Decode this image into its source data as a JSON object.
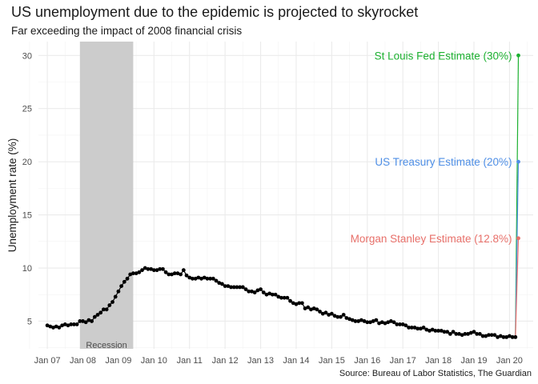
{
  "chart_data": {
    "type": "line",
    "title": "US unemployment due to the epidemic is projected to skyrocket",
    "subtitle": "Far exceeding the impact of 2008 financial crisis",
    "caption": "Source: Bureau of Labor Statistics, The Guardian",
    "ylabel": "Unemployment rate (%)",
    "xlabel": "",
    "xlim": [
      "2006-10",
      "2020-09"
    ],
    "ylim": [
      2.4,
      31.3
    ],
    "grid": true,
    "x_ticks": [
      "Jan 07",
      "Jan 08",
      "Jan 09",
      "Jan 10",
      "Jan 11",
      "Jan 12",
      "Jan 13",
      "Jan 14",
      "Jan 15",
      "Jan 16",
      "Jan 17",
      "Jan 18",
      "Jan 19",
      "Jan 20"
    ],
    "y_ticks": [
      5,
      10,
      15,
      20,
      25,
      30
    ],
    "recession": {
      "label": "Recession",
      "start": "2007-12",
      "end": "2009-06"
    },
    "series": [
      {
        "start": "2007-01",
        "color": "#000000",
        "values": [
          4.6,
          4.5,
          4.4,
          4.5,
          4.4,
          4.6,
          4.7,
          4.6,
          4.7,
          4.7,
          4.7,
          5.0,
          5.0,
          4.9,
          5.1,
          5.0,
          5.4,
          5.6,
          5.8,
          6.1,
          6.1,
          6.5,
          6.8,
          7.3,
          7.8,
          8.3,
          8.7,
          9.0,
          9.4,
          9.5,
          9.5,
          9.6,
          9.8,
          10.0,
          9.9,
          9.9,
          9.8,
          9.8,
          9.9,
          9.9,
          9.6,
          9.4,
          9.4,
          9.5,
          9.5,
          9.4,
          9.8,
          9.3,
          9.1,
          9.0,
          9.0,
          9.1,
          9.0,
          9.1,
          9.0,
          9.0,
          9.0,
          8.8,
          8.6,
          8.5,
          8.3,
          8.3,
          8.2,
          8.2,
          8.2,
          8.2,
          8.2,
          8.0,
          7.8,
          7.8,
          7.7,
          7.9,
          8.0,
          7.7,
          7.5,
          7.6,
          7.5,
          7.5,
          7.3,
          7.2,
          7.2,
          7.2,
          6.9,
          6.7,
          6.6,
          6.7,
          6.7,
          6.2,
          6.3,
          6.1,
          6.2,
          6.1,
          5.9,
          5.7,
          5.8,
          5.6,
          5.7,
          5.5,
          5.4,
          5.4,
          5.6,
          5.3,
          5.2,
          5.1,
          5.0,
          5.0,
          5.1,
          5.0,
          4.9,
          4.9,
          5.0,
          5.1,
          4.8,
          4.9,
          4.8,
          4.9,
          5.0,
          4.9,
          4.7,
          4.7,
          4.7,
          4.6,
          4.4,
          4.4,
          4.4,
          4.3,
          4.3,
          4.4,
          4.2,
          4.1,
          4.2,
          4.1,
          4.1,
          4.1,
          4.0,
          4.0,
          3.8,
          4.0,
          3.8,
          3.8,
          3.7,
          3.8,
          3.8,
          3.9,
          4.0,
          3.8,
          3.8,
          3.6,
          3.6,
          3.7,
          3.7,
          3.7,
          3.5,
          3.6,
          3.5,
          3.5,
          3.6,
          3.5,
          3.5
        ]
      }
    ],
    "estimates": [
      {
        "name": "St Louis Fed Estimate (30%)",
        "x": "2020-04",
        "value": 30,
        "color": "#1db131"
      },
      {
        "name": "US Treasury Estimate (20%)",
        "x": "2020-04",
        "value": 20,
        "color": "#4f8fe6"
      },
      {
        "name": "Morgan Stanley Estimate (12.8%)",
        "x": "2020-04",
        "value": 12.8,
        "color": "#e8706a"
      }
    ],
    "estimate_origin": {
      "x": "2020-03",
      "value": 3.5
    }
  }
}
